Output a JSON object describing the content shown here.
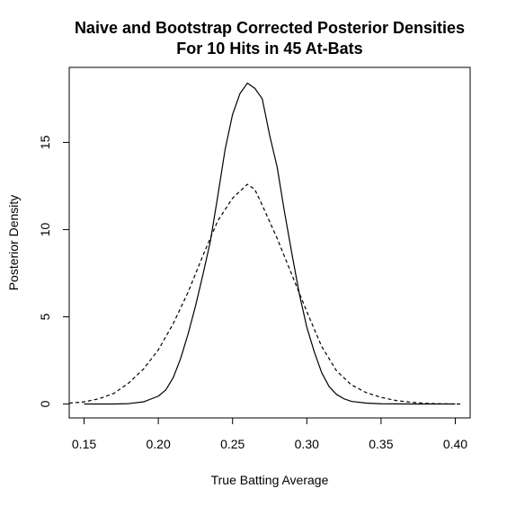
{
  "chart_data": {
    "type": "line",
    "title_line1": "Naive and Bootstrap Corrected Posterior Densities",
    "title_line2": "For 10 Hits in 45 At-Bats",
    "xlabel": "True Batting Average",
    "ylabel": "Posterior Density",
    "xlim": [
      0.14,
      0.41
    ],
    "ylim": [
      -0.8,
      19.3
    ],
    "grid": false,
    "x_ticks": [
      {
        "value": 0.15,
        "label": "0.15"
      },
      {
        "value": 0.2,
        "label": "0.20"
      },
      {
        "value": 0.25,
        "label": "0.25"
      },
      {
        "value": 0.3,
        "label": "0.30"
      },
      {
        "value": 0.35,
        "label": "0.35"
      },
      {
        "value": 0.4,
        "label": "0.40"
      }
    ],
    "y_ticks": [
      {
        "value": 0,
        "label": "0"
      },
      {
        "value": 5,
        "label": "5"
      },
      {
        "value": 10,
        "label": "10"
      },
      {
        "value": 15,
        "label": "15"
      }
    ],
    "series": [
      {
        "line_style": "solid",
        "color": "#000000",
        "points": [
          [
            0.15,
            0.0
          ],
          [
            0.17,
            0.0
          ],
          [
            0.18,
            0.02
          ],
          [
            0.19,
            0.12
          ],
          [
            0.2,
            0.45
          ],
          [
            0.205,
            0.8
          ],
          [
            0.21,
            1.5
          ],
          [
            0.215,
            2.6
          ],
          [
            0.22,
            4.0
          ],
          [
            0.225,
            5.6
          ],
          [
            0.23,
            7.4
          ],
          [
            0.235,
            9.3
          ],
          [
            0.24,
            11.9
          ],
          [
            0.245,
            14.6
          ],
          [
            0.25,
            16.6
          ],
          [
            0.255,
            17.8
          ],
          [
            0.26,
            18.4
          ],
          [
            0.265,
            18.1
          ],
          [
            0.27,
            17.5
          ],
          [
            0.275,
            15.4
          ],
          [
            0.28,
            13.6
          ],
          [
            0.285,
            11.0
          ],
          [
            0.29,
            8.6
          ],
          [
            0.295,
            6.3
          ],
          [
            0.3,
            4.4
          ],
          [
            0.305,
            3.0
          ],
          [
            0.31,
            1.8
          ],
          [
            0.315,
            1.0
          ],
          [
            0.32,
            0.55
          ],
          [
            0.325,
            0.3
          ],
          [
            0.33,
            0.15
          ],
          [
            0.34,
            0.05
          ],
          [
            0.35,
            0.01
          ],
          [
            0.37,
            0.0
          ],
          [
            0.4,
            0.0
          ]
        ]
      },
      {
        "line_style": "dashed",
        "color": "#000000",
        "points": [
          [
            0.14,
            0.05
          ],
          [
            0.15,
            0.12
          ],
          [
            0.16,
            0.3
          ],
          [
            0.17,
            0.6
          ],
          [
            0.18,
            1.2
          ],
          [
            0.19,
            2.0
          ],
          [
            0.2,
            3.1
          ],
          [
            0.21,
            4.6
          ],
          [
            0.22,
            6.4
          ],
          [
            0.23,
            8.5
          ],
          [
            0.24,
            10.5
          ],
          [
            0.25,
            11.8
          ],
          [
            0.255,
            12.2
          ],
          [
            0.26,
            12.6
          ],
          [
            0.265,
            12.3
          ],
          [
            0.27,
            11.4
          ],
          [
            0.28,
            9.5
          ],
          [
            0.29,
            7.4
          ],
          [
            0.3,
            5.3
          ],
          [
            0.31,
            3.3
          ],
          [
            0.32,
            1.9
          ],
          [
            0.33,
            1.1
          ],
          [
            0.34,
            0.65
          ],
          [
            0.35,
            0.38
          ],
          [
            0.36,
            0.2
          ],
          [
            0.37,
            0.1
          ],
          [
            0.38,
            0.04
          ],
          [
            0.39,
            0.01
          ],
          [
            0.4,
            0.0
          ],
          [
            0.405,
            0.0
          ]
        ]
      }
    ]
  }
}
